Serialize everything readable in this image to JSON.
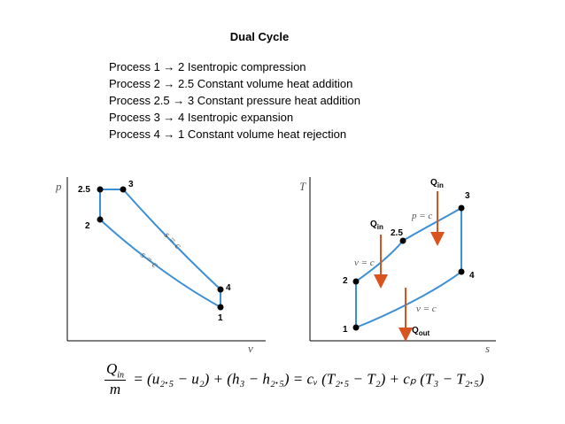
{
  "title": "Dual Cycle",
  "processes": [
    "Process 1 → 2  Isentropic compression",
    "Process 2 → 2.5  Constant volume heat addition",
    "Process 2.5 → 3  Constant pressure heat addition",
    "Process 3 → 4  Isentropic expansion",
    "Process 4 → 1  Constant volume heat rejection"
  ],
  "pv": {
    "y_axis": "p",
    "x_axis": "v",
    "points": {
      "p1": "1",
      "p2": "2",
      "p25": "2.5",
      "p3": "3",
      "p4": "4"
    },
    "curve_upper": "s = c",
    "curve_lower": "s = c"
  },
  "ts": {
    "y_axis": "T",
    "x_axis": "s",
    "points": {
      "p1": "1",
      "p2": "2",
      "p25": "2.5",
      "p3": "3",
      "p4": "4"
    },
    "v_upper": "v = c",
    "p_const": "p = c",
    "v_lower": "v = c",
    "q_in": "Q",
    "q_in_sub": "in",
    "q_out": "Q",
    "q_out_sub": "out"
  },
  "equation": {
    "numerator": "Q",
    "numerator_sub": "in",
    "denominator": "m",
    "rhs": "= (u₂.₅ − u₂) + (h₃ − h₂.₅) = cᵥ (T₂.₅ − T₂) + cₚ (T₃ − T₂.₅)"
  },
  "colors": {
    "curve": "#3a8fd6",
    "arrow": "#d9531e",
    "axis": "#000000"
  }
}
